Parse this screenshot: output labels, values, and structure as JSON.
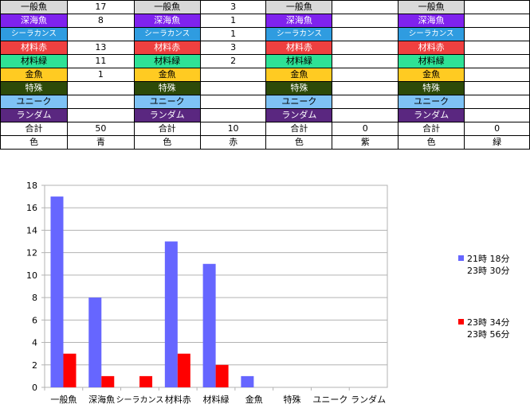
{
  "colors": {
    "ippangyo": "#d9d9d9",
    "shinkaigyo": "#7f22ee",
    "coelacanth": "#2f9ce0",
    "zairyo_aka": "#ef4040",
    "zairyo_midori": "#2ee296",
    "kingyo": "#ffcb22",
    "tokushu": "#2d4a09",
    "unique": "#7ec2f5",
    "random": "#5a2780",
    "series1": "#6666ff",
    "series2": "#ff0000"
  },
  "sheet": {
    "blocks": [
      {
        "items": [
          {
            "label": "一般魚",
            "value": "17"
          },
          {
            "label": "深海魚",
            "value": "8"
          },
          {
            "label": "シーラカンス",
            "value": ""
          },
          {
            "label": "材料赤",
            "value": "13"
          },
          {
            "label": "材料緑",
            "value": "11"
          },
          {
            "label": "金魚",
            "value": "1"
          },
          {
            "label": "特殊",
            "value": ""
          },
          {
            "label": "ユニーク",
            "value": ""
          },
          {
            "label": "ランダム",
            "value": ""
          }
        ],
        "total_label": "合計",
        "total": "50",
        "color_label": "色",
        "color": "青"
      },
      {
        "items": [
          {
            "label": "一般魚",
            "value": "3"
          },
          {
            "label": "深海魚",
            "value": "1"
          },
          {
            "label": "シーラカンス",
            "value": "1"
          },
          {
            "label": "材料赤",
            "value": "3"
          },
          {
            "label": "材料緑",
            "value": "2"
          },
          {
            "label": "金魚",
            "value": ""
          },
          {
            "label": "特殊",
            "value": ""
          },
          {
            "label": "ユニーク",
            "value": ""
          },
          {
            "label": "ランダム",
            "value": ""
          }
        ],
        "total_label": "合計",
        "total": "10",
        "color_label": "色",
        "color": "赤"
      },
      {
        "items": [
          {
            "label": "一般魚",
            "value": ""
          },
          {
            "label": "深海魚",
            "value": ""
          },
          {
            "label": "シーラカンス",
            "value": ""
          },
          {
            "label": "材料赤",
            "value": ""
          },
          {
            "label": "材料緑",
            "value": ""
          },
          {
            "label": "金魚",
            "value": ""
          },
          {
            "label": "特殊",
            "value": ""
          },
          {
            "label": "ユニーク",
            "value": ""
          },
          {
            "label": "ランダム",
            "value": ""
          }
        ],
        "total_label": "合計",
        "total": "0",
        "color_label": "色",
        "color": "紫"
      },
      {
        "items": [
          {
            "label": "一般魚",
            "value": ""
          },
          {
            "label": "深海魚",
            "value": ""
          },
          {
            "label": "シーラカンス",
            "value": ""
          },
          {
            "label": "材料赤",
            "value": ""
          },
          {
            "label": "材料緑",
            "value": ""
          },
          {
            "label": "金魚",
            "value": ""
          },
          {
            "label": "特殊",
            "value": ""
          },
          {
            "label": "ユニーク",
            "value": ""
          },
          {
            "label": "ランダム",
            "value": ""
          }
        ],
        "total_label": "合計",
        "total": "0",
        "color_label": "色",
        "color": "緑"
      }
    ]
  },
  "chart_data": {
    "type": "bar",
    "categories": [
      "一般魚",
      "深海魚",
      "シーラカンス",
      "材料赤",
      "材料緑",
      "金魚",
      "特殊",
      "ユニーク",
      "ランダム"
    ],
    "series": [
      {
        "name_line1": "21時 18分",
        "name_line2": "23時 30分",
        "values": [
          17,
          8,
          0,
          13,
          11,
          1,
          0,
          0,
          0
        ]
      },
      {
        "name_line1": "23時 34分",
        "name_line2": "23時 56分",
        "values": [
          3,
          1,
          1,
          3,
          2,
          0,
          0,
          0,
          0
        ]
      }
    ],
    "y_ticks": [
      "0",
      "2",
      "4",
      "6",
      "8",
      "10",
      "12",
      "14",
      "16",
      "18"
    ],
    "ylim": [
      0,
      18
    ],
    "grid": true,
    "legend_position": "right"
  }
}
